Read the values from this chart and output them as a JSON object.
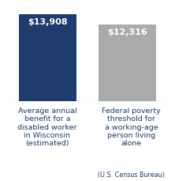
{
  "categories_line1": [
    "Average annual\nbenefit for a\ndisabled worker\nin Wisconsin\n(estimated)",
    "Federal poverty\nthreshold for\na working-age\nperson living\nalone"
  ],
  "categories_line2": [
    "",
    "(U.S. Census Bureau)"
  ],
  "values": [
    13908,
    12316
  ],
  "labels": [
    "$13,908",
    "$12,316"
  ],
  "bar_colors": [
    "#1f3c6e",
    "#a9abad"
  ],
  "label_color": "#ffffff",
  "background_color": "#ffffff",
  "ylim": [
    0,
    15500
  ],
  "bar_width": 0.72,
  "label_fontsize": 8.0,
  "category_fontsize": 6.8,
  "category_small_fontsize": 5.8,
  "category_color": "#1f3c6e",
  "baseline_color": "#888888"
}
